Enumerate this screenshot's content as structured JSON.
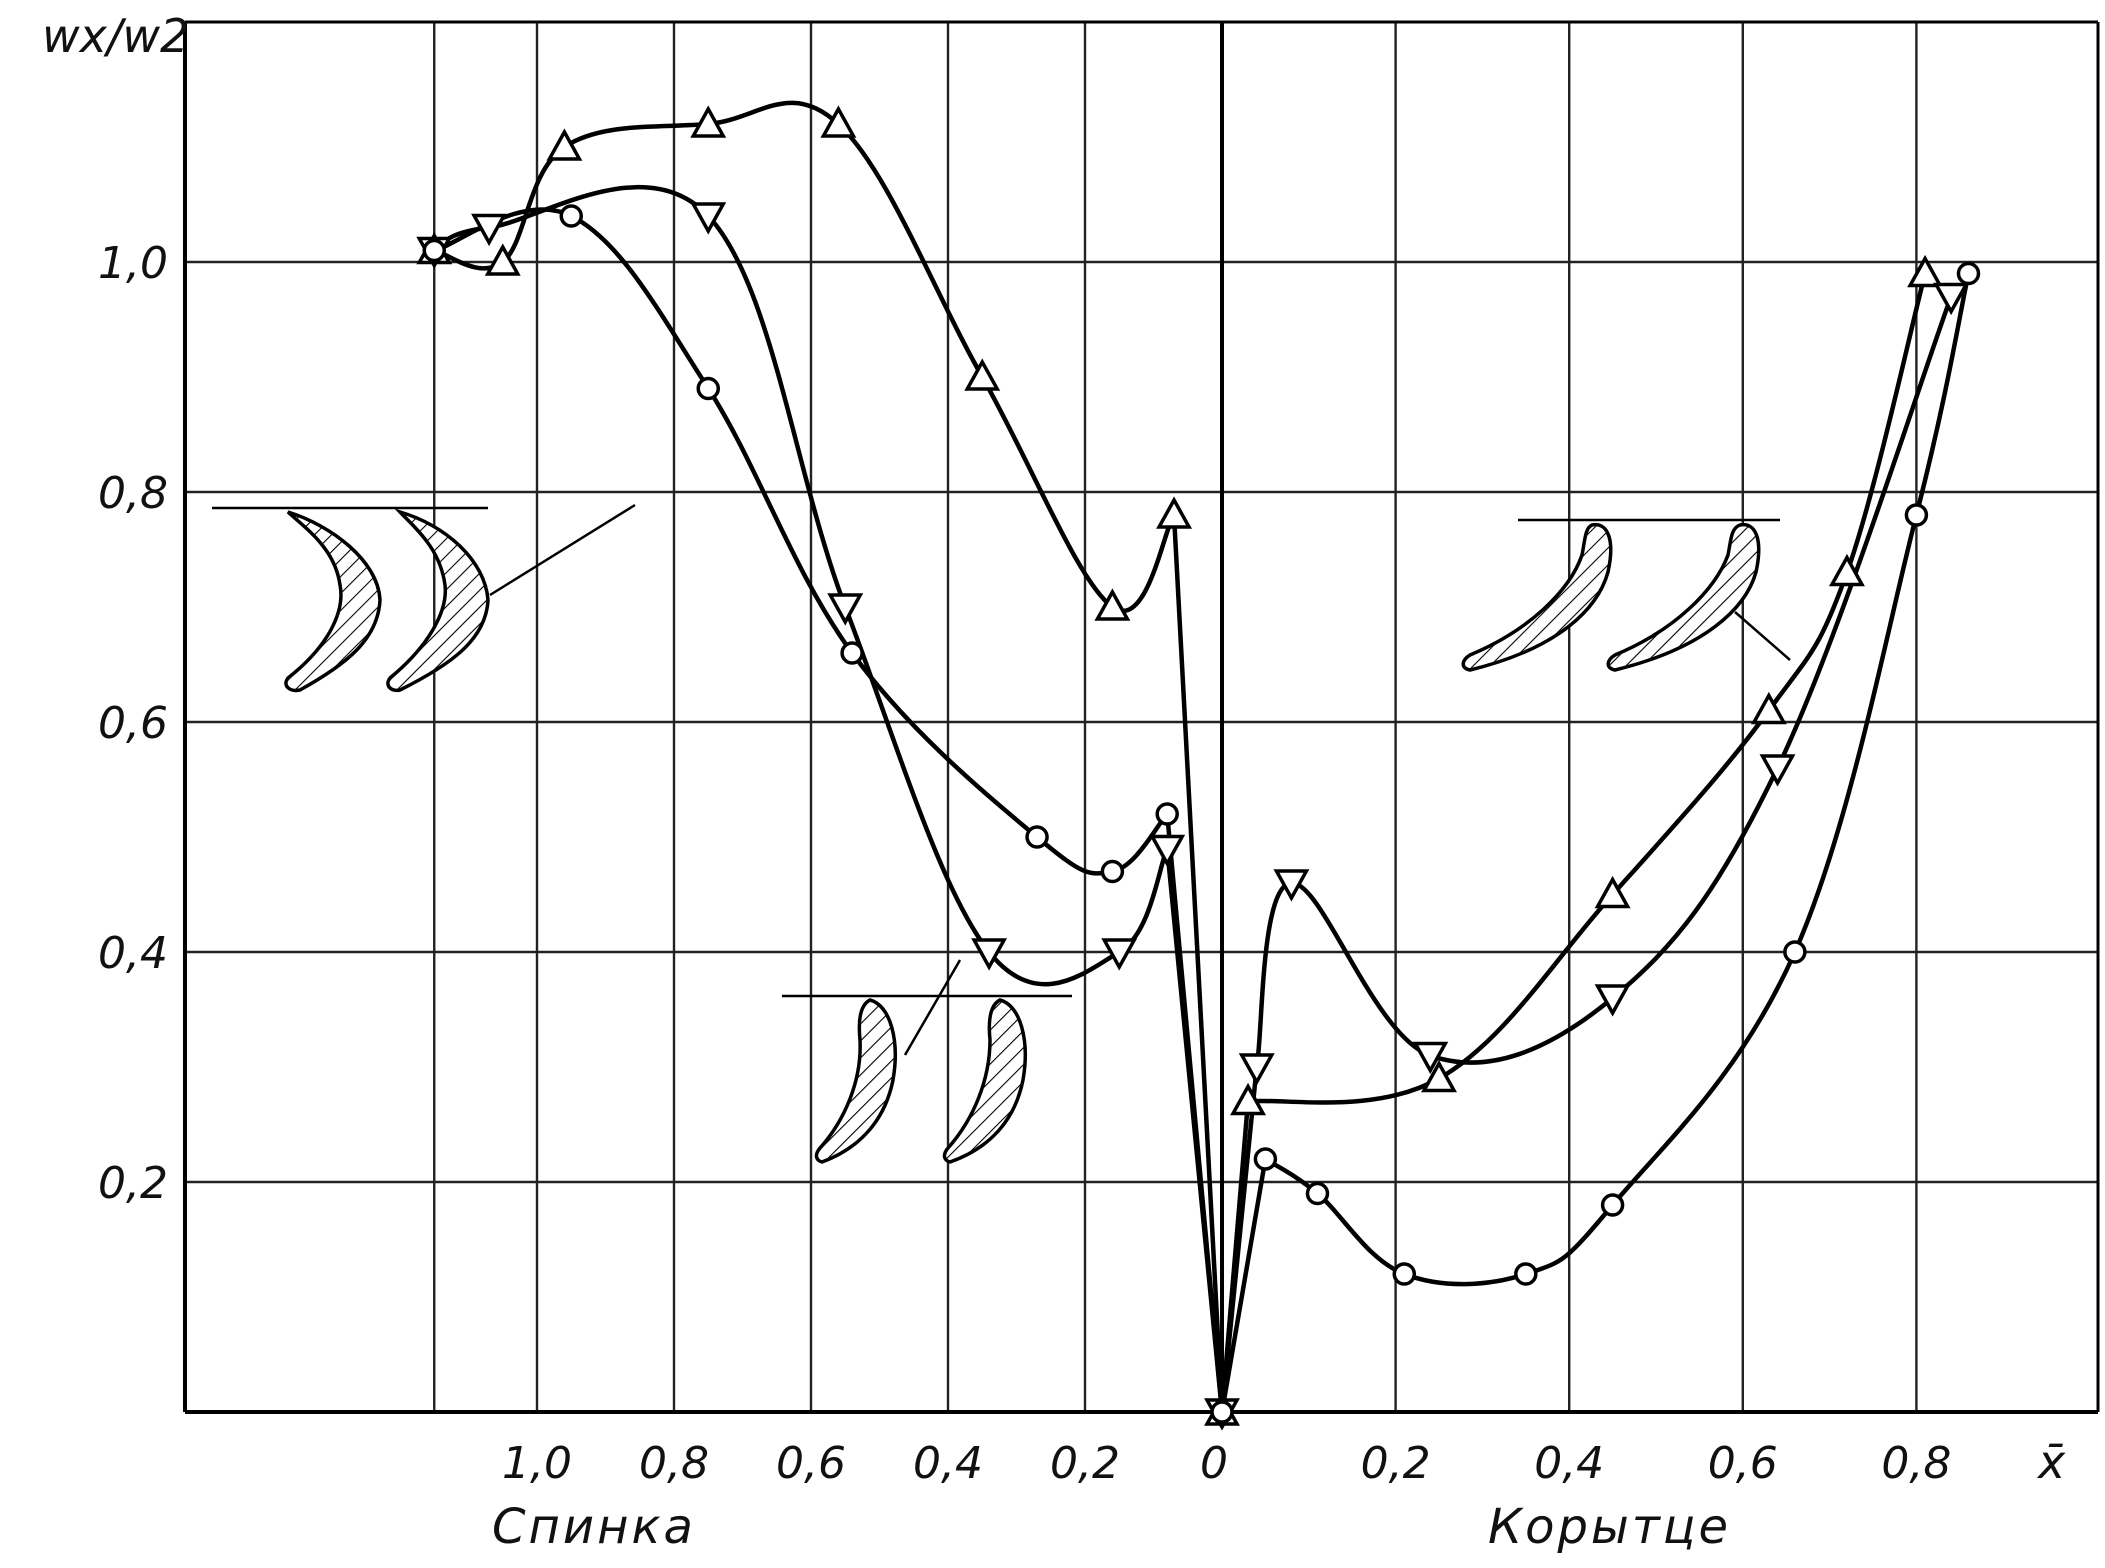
{
  "chart_data": {
    "type": "line",
    "ylabel": "wx/w2",
    "xlabel": "x̄",
    "side_labels": {
      "suction": "Спинка",
      "pressure": "Корытце"
    },
    "x_ticks_suction": [
      "1,0",
      "0,8",
      "0,6",
      "0,4",
      "0,2"
    ],
    "x_tick_zero": "0",
    "x_ticks_pressure": [
      "0,2",
      "0,4",
      "0,6",
      "0,8"
    ],
    "y_ticks": [
      "0,2",
      "0,4",
      "0,6",
      "0,8",
      "1,0"
    ],
    "ylim": [
      0,
      1.2
    ],
    "grid": true,
    "x_scale_note": "signed: negative = Спинка (suction side), positive = Корытце (pressure side)",
    "series": [
      {
        "marker": "triangle-up",
        "points": [
          [
            -1.15,
            1.01
          ],
          [
            -1.05,
            1.0
          ],
          [
            -0.96,
            1.1
          ],
          [
            -0.75,
            1.12
          ],
          [
            -0.56,
            1.12
          ],
          [
            -0.35,
            0.9
          ],
          [
            -0.16,
            0.7
          ],
          [
            -0.07,
            0.78
          ],
          [
            0.0,
            0.0
          ],
          [
            0.03,
            0.27
          ],
          [
            0.25,
            0.29
          ],
          [
            0.45,
            0.45
          ],
          [
            0.63,
            0.61
          ],
          [
            0.72,
            0.73
          ],
          [
            0.81,
            0.99
          ]
        ]
      },
      {
        "marker": "triangle-down",
        "points": [
          [
            -1.15,
            1.01
          ],
          [
            -1.07,
            1.03
          ],
          [
            -0.75,
            1.04
          ],
          [
            -0.55,
            0.7
          ],
          [
            -0.34,
            0.4
          ],
          [
            -0.15,
            0.4
          ],
          [
            -0.08,
            0.49
          ],
          [
            0.0,
            0.0
          ],
          [
            0.04,
            0.3
          ],
          [
            0.08,
            0.46
          ],
          [
            0.24,
            0.31
          ],
          [
            0.45,
            0.36
          ],
          [
            0.64,
            0.56
          ],
          [
            0.84,
            0.97
          ]
        ]
      },
      {
        "marker": "circle",
        "points": [
          [
            -1.15,
            1.01
          ],
          [
            -0.95,
            1.04
          ],
          [
            -0.75,
            0.89
          ],
          [
            -0.54,
            0.66
          ],
          [
            -0.27,
            0.5
          ],
          [
            -0.16,
            0.47
          ],
          [
            -0.08,
            0.52
          ],
          [
            0.0,
            0.0
          ],
          [
            0.05,
            0.22
          ],
          [
            0.11,
            0.19
          ],
          [
            0.21,
            0.12
          ],
          [
            0.35,
            0.12
          ],
          [
            0.45,
            0.18
          ],
          [
            0.66,
            0.4
          ],
          [
            0.8,
            0.78
          ],
          [
            0.86,
            0.99
          ]
        ]
      }
    ]
  }
}
